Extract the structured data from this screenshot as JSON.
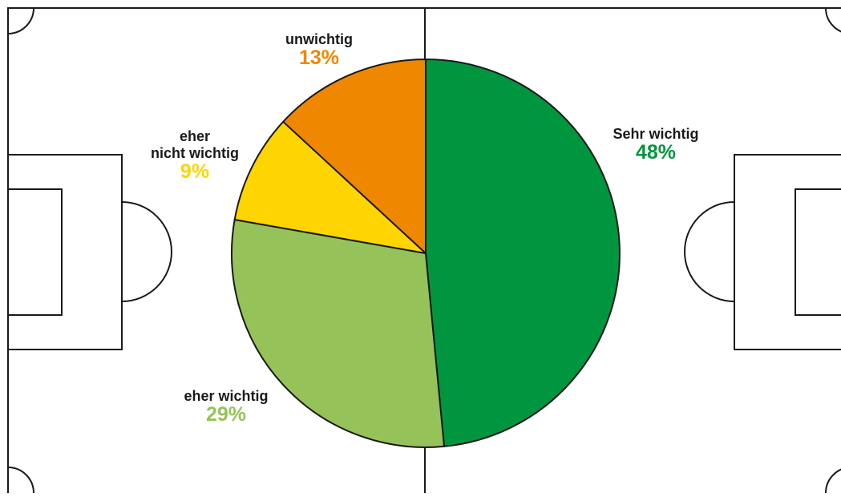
{
  "chart_data": {
    "type": "pie",
    "title": "",
    "slices": [
      {
        "label": "Sehr wichtig",
        "value": 48,
        "value_label": "48%",
        "color": "#009640"
      },
      {
        "label": "eher wichtig",
        "value": 29,
        "value_label": "29%",
        "color": "#95C35A"
      },
      {
        "label": "eher\nnicht wichtig",
        "value": 9,
        "value_label": "9%",
        "color": "#FFD500"
      },
      {
        "label": "unwichtig",
        "value": 13,
        "value_label": "13%",
        "color": "#F08700"
      }
    ],
    "start_angle_deg": 0,
    "direction": "clockwise",
    "label_color": "#1a1a1a",
    "background": "soccer-field",
    "line_color": "#1a1a1a"
  }
}
